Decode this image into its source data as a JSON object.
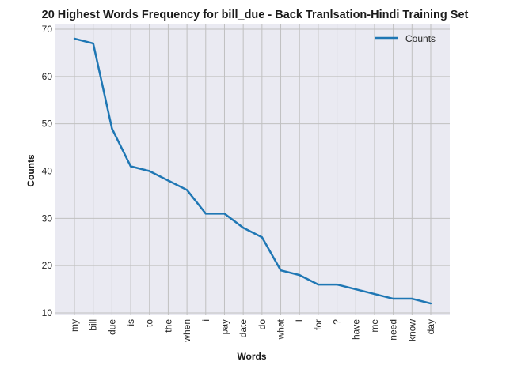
{
  "chart_data": {
    "type": "line",
    "title": "20 Highest Words Frequency for bill_due - Back Tranlsation-Hindi Training Set",
    "xlabel": "Words",
    "ylabel": "Counts",
    "categories": [
      "my",
      "bill",
      "due",
      "is",
      "to",
      "the",
      "when",
      "i",
      "pay",
      "date",
      "do",
      "what",
      "I",
      "for",
      "?",
      "have",
      "me",
      "need",
      "know",
      "day"
    ],
    "series": [
      {
        "name": "Counts",
        "values": [
          68,
          67,
          49,
          41,
          40,
          38,
          36,
          31,
          31,
          28,
          26,
          19,
          18,
          16,
          16,
          15,
          14,
          13,
          13,
          12
        ]
      }
    ],
    "ylim": [
      10,
      70
    ],
    "yticks": [
      10,
      20,
      30,
      40,
      50,
      60,
      70
    ],
    "grid": true,
    "legend_position": "top-right",
    "colors": {
      "line": "#1f77b4",
      "plot_background": "#eaeaf2",
      "grid": "#c0c0c0"
    }
  }
}
